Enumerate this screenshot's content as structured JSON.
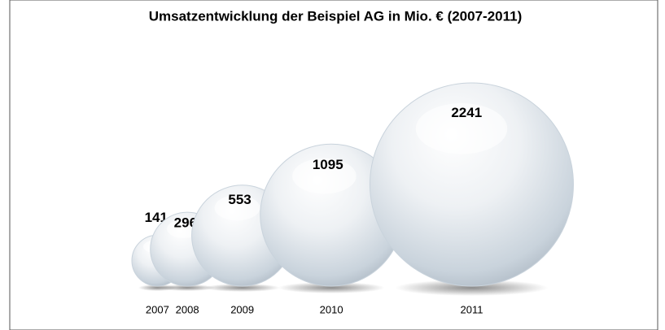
{
  "chart_data": {
    "type": "bubble",
    "title": "Umsatzentwicklung der Beispiel AG in Mio. € (2007-2011)",
    "categories": [
      "2007",
      "2008",
      "2009",
      "2010",
      "2011"
    ],
    "values": [
      141,
      296,
      553,
      1095,
      2241
    ],
    "color": "#c9d3dc"
  }
}
